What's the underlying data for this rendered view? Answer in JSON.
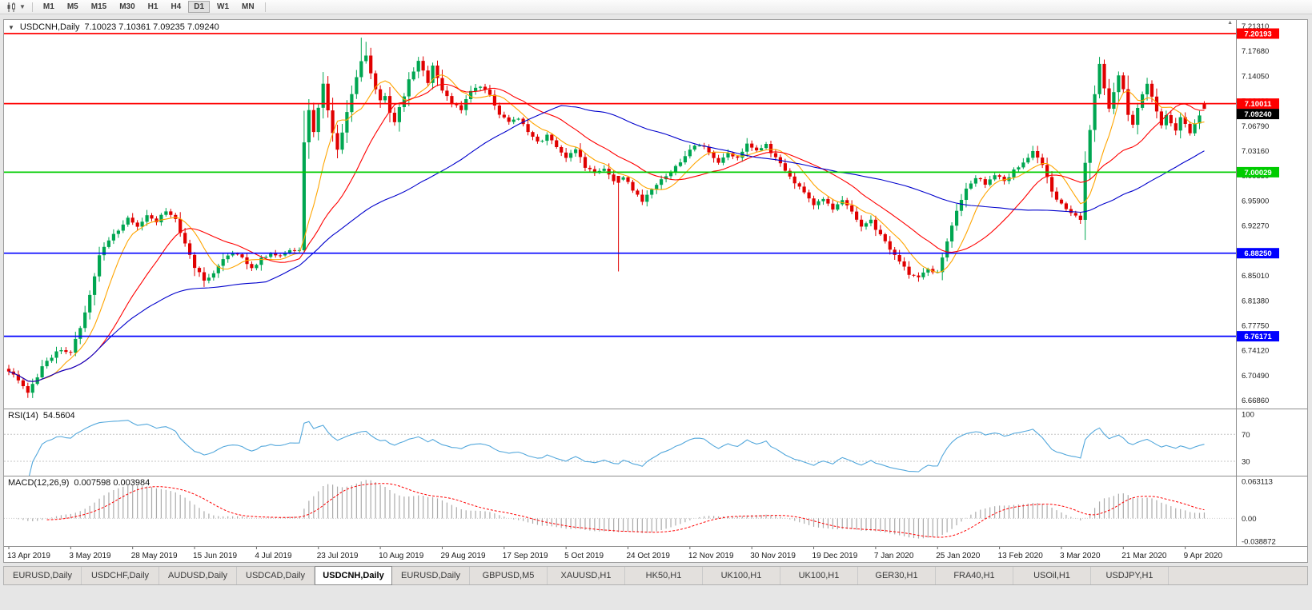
{
  "toolbar": {
    "chart_type_icon": "candlestick-chart-icon",
    "dropdown_icon": "chevron-down-icon",
    "periods": [
      "M1",
      "M5",
      "M15",
      "M30",
      "H1",
      "H4",
      "D1",
      "W1",
      "MN"
    ],
    "active_period": "D1"
  },
  "main_chart": {
    "symbol_period": "USDCNH,Daily",
    "ohlc": "7.10023 7.10361 7.09235 7.09240",
    "price_axis_labels": [
      "7.21310",
      "7.17680",
      "7.14050",
      "7.10420",
      "7.06790",
      "7.03160",
      "6.99530",
      "6.95900",
      "6.92270",
      "6.88640",
      "6.85010",
      "6.81380",
      "6.77750",
      "6.74120",
      "6.70490",
      "6.66860"
    ],
    "horizontal_lines": [
      {
        "price": 7.20193,
        "label": "7.20193",
        "color": "#FF0000"
      },
      {
        "price": 7.10011,
        "label": "7.10011",
        "color": "#FF0000"
      },
      {
        "price": 7.00029,
        "label": "7.00029",
        "color": "#00CC00"
      },
      {
        "price": 6.8825,
        "label": "6.88250",
        "color": "#0000FF"
      },
      {
        "price": 6.76171,
        "label": "6.76171",
        "color": "#0000FF"
      }
    ],
    "last_price": {
      "label": "7.09240",
      "color": "#000000"
    }
  },
  "rsi_pane": {
    "title": "RSI(14)",
    "value": "54.5604",
    "axis_labels": [
      "100",
      "70",
      "30"
    ],
    "levels": [
      70,
      30
    ],
    "line_color": "#54A8DC"
  },
  "macd_pane": {
    "title": "MACD(12,26,9)",
    "values": "0.007598 0.003984",
    "axis_labels": [
      "0.063113",
      "0.00",
      "-0.038872"
    ],
    "histogram_color": "#ABABAB",
    "signal_color": "#FF0000"
  },
  "time_axis": [
    "13 Apr 2019",
    "3 May 2019",
    "28 May 2019",
    "15 Jun 2019",
    "4 Jul 2019",
    "23 Jul 2019",
    "10 Aug 2019",
    "29 Aug 2019",
    "17 Sep 2019",
    "5 Oct 2019",
    "24 Oct 2019",
    "12 Nov 2019",
    "30 Nov 2019",
    "19 Dec 2019",
    "7 Jan 2020",
    "25 Jan 2020",
    "13 Feb 2020",
    "3 Mar 2020",
    "21 Mar 2020",
    "9 Apr 2020"
  ],
  "tabs": {
    "items": [
      "EURUSD,Daily",
      "USDCHF,Daily",
      "AUDUSD,Daily",
      "USDCAD,Daily",
      "USDCNH,Daily",
      "EURUSD,Daily",
      "GBPUSD,M5",
      "XAUUSD,H1",
      "HK50,H1",
      "UK100,H1",
      "UK100,H1",
      "GER30,H1",
      "FRA40,H1",
      "USOil,H1",
      "USDJPY,H1"
    ],
    "active_index": 4
  },
  "chart_data": {
    "type": "candlestick",
    "symbol": "USDCNH",
    "timeframe": "Daily",
    "bars": 252,
    "up_color": "#00A651",
    "down_color": "#E00000",
    "noise": 0.005,
    "price_scale": {
      "top_price": 7.2217,
      "bottom_price": 6.6565
    },
    "close_anchors": [
      [
        0,
        6.712
      ],
      [
        2,
        6.696
      ],
      [
        4,
        6.681
      ],
      [
        7,
        6.716
      ],
      [
        10,
        6.741
      ],
      [
        13,
        6.74
      ],
      [
        15,
        6.772
      ],
      [
        17,
        6.824
      ],
      [
        19,
        6.878
      ],
      [
        21,
        6.903
      ],
      [
        23,
        6.917
      ],
      [
        25,
        6.934
      ],
      [
        27,
        6.921
      ],
      [
        29,
        6.94
      ],
      [
        31,
        6.928
      ],
      [
        33,
        6.944
      ],
      [
        35,
        6.93
      ],
      [
        37,
        6.899
      ],
      [
        39,
        6.863
      ],
      [
        41,
        6.843
      ],
      [
        43,
        6.853
      ],
      [
        45,
        6.875
      ],
      [
        47,
        6.882
      ],
      [
        49,
        6.877
      ],
      [
        51,
        6.861
      ],
      [
        53,
        6.875
      ],
      [
        55,
        6.884
      ],
      [
        57,
        6.879
      ],
      [
        59,
        6.885
      ],
      [
        61,
        6.888
      ],
      [
        62,
        7.042
      ],
      [
        63,
        7.089
      ],
      [
        64,
        7.058
      ],
      [
        65,
        7.093
      ],
      [
        66,
        7.131
      ],
      [
        67,
        7.091
      ],
      [
        68,
        7.059
      ],
      [
        69,
        7.033
      ],
      [
        70,
        7.06
      ],
      [
        71,
        7.089
      ],
      [
        72,
        7.112
      ],
      [
        73,
        7.141
      ],
      [
        74,
        7.16
      ],
      [
        75,
        7.171
      ],
      [
        76,
        7.143
      ],
      [
        77,
        7.12
      ],
      [
        78,
        7.103
      ],
      [
        79,
        7.113
      ],
      [
        80,
        7.086
      ],
      [
        81,
        7.071
      ],
      [
        82,
        7.093
      ],
      [
        83,
        7.113
      ],
      [
        84,
        7.133
      ],
      [
        85,
        7.149
      ],
      [
        86,
        7.161
      ],
      [
        87,
        7.146
      ],
      [
        88,
        7.131
      ],
      [
        89,
        7.153
      ],
      [
        90,
        7.136
      ],
      [
        91,
        7.119
      ],
      [
        93,
        7.101
      ],
      [
        95,
        7.09
      ],
      [
        97,
        7.12
      ],
      [
        99,
        7.126
      ],
      [
        101,
        7.111
      ],
      [
        103,
        7.086
      ],
      [
        105,
        7.073
      ],
      [
        107,
        7.079
      ],
      [
        109,
        7.059
      ],
      [
        111,
        7.043
      ],
      [
        113,
        7.053
      ],
      [
        115,
        7.037
      ],
      [
        117,
        7.021
      ],
      [
        119,
        7.033
      ],
      [
        121,
        7.009
      ],
      [
        123,
        6.997
      ],
      [
        125,
        7.006
      ],
      [
        127,
        6.989
      ],
      [
        129,
        6.993
      ],
      [
        131,
        6.976
      ],
      [
        133,
        6.959
      ],
      [
        135,
        6.973
      ],
      [
        137,
        6.989
      ],
      [
        139,
        7.003
      ],
      [
        141,
        7.016
      ],
      [
        143,
        7.033
      ],
      [
        145,
        7.041
      ],
      [
        147,
        7.029
      ],
      [
        149,
        7.013
      ],
      [
        151,
        7.029
      ],
      [
        153,
        7.019
      ],
      [
        155,
        7.043
      ],
      [
        157,
        7.031
      ],
      [
        159,
        7.039
      ],
      [
        161,
        7.021
      ],
      [
        163,
        7.003
      ],
      [
        165,
        6.986
      ],
      [
        167,
        6.969
      ],
      [
        169,
        6.953
      ],
      [
        171,
        6.961
      ],
      [
        173,
        6.946
      ],
      [
        175,
        6.959
      ],
      [
        177,
        6.941
      ],
      [
        179,
        6.923
      ],
      [
        181,
        6.929
      ],
      [
        183,
        6.909
      ],
      [
        185,
        6.889
      ],
      [
        187,
        6.871
      ],
      [
        189,
        6.853
      ],
      [
        191,
        6.847
      ],
      [
        193,
        6.861
      ],
      [
        195,
        6.853
      ],
      [
        197,
        6.899
      ],
      [
        199,
        6.943
      ],
      [
        201,
        6.977
      ],
      [
        203,
        6.993
      ],
      [
        205,
        6.983
      ],
      [
        207,
        6.997
      ],
      [
        209,
        6.986
      ],
      [
        211,
        7.003
      ],
      [
        213,
        7.016
      ],
      [
        215,
        7.029
      ],
      [
        217,
        7.011
      ],
      [
        218,
        6.993
      ],
      [
        219,
        6.971
      ],
      [
        221,
        6.953
      ],
      [
        223,
        6.939
      ],
      [
        225,
        6.931
      ],
      [
        226,
        7.012
      ],
      [
        227,
        7.062
      ],
      [
        228,
        7.112
      ],
      [
        229,
        7.156
      ],
      [
        230,
        7.121
      ],
      [
        231,
        7.091
      ],
      [
        232,
        7.116
      ],
      [
        233,
        7.141
      ],
      [
        234,
        7.121
      ],
      [
        235,
        7.086
      ],
      [
        236,
        7.069
      ],
      [
        237,
        7.093
      ],
      [
        238,
        7.113
      ],
      [
        239,
        7.129
      ],
      [
        240,
        7.109
      ],
      [
        241,
        7.089
      ],
      [
        242,
        7.069
      ],
      [
        243,
        7.083
      ],
      [
        244,
        7.073
      ],
      [
        245,
        7.063
      ],
      [
        246,
        7.079
      ],
      [
        247,
        7.069
      ],
      [
        248,
        7.059
      ],
      [
        249,
        7.073
      ],
      [
        250,
        7.084
      ],
      [
        251,
        7.092
      ]
    ],
    "overrides": {
      "4": {
        "l": 6.672
      },
      "62": {
        "l": 6.885
      },
      "66": {
        "h": 7.146
      },
      "74": {
        "h": 7.196
      },
      "75": {
        "h": 7.19
      },
      "128": {
        "o": 6.995,
        "c": 6.985,
        "l": 6.856
      },
      "191": {
        "l": 6.841
      },
      "229": {
        "h": 7.168
      },
      "251": {
        "o": 7.10023,
        "h": 7.10361,
        "l": 7.09235,
        "c": 7.0924
      }
    },
    "moving_averages": [
      {
        "name": "ma-fast-line",
        "period": 8,
        "color": "#FFA500"
      },
      {
        "name": "ma-medium-line",
        "period": 20,
        "color": "#FF0000"
      },
      {
        "name": "ma-slow-line",
        "period": 55,
        "color": "#0000CC"
      }
    ]
  }
}
